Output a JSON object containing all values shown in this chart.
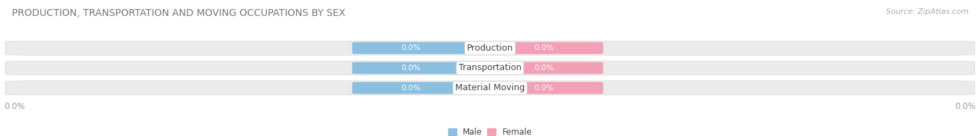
{
  "title": "PRODUCTION, TRANSPORTATION AND MOVING OCCUPATIONS BY SEX",
  "source_text": "Source: ZipAtlas.com",
  "categories": [
    "Production",
    "Transportation",
    "Material Moving"
  ],
  "male_values": [
    0.0,
    0.0,
    0.0
  ],
  "female_values": [
    0.0,
    0.0,
    0.0
  ],
  "male_color": "#8bbfe0",
  "female_color": "#f2a0b5",
  "bar_bg_color": "#ebebeb",
  "male_label": "Male",
  "female_label": "Female",
  "title_fontsize": 10,
  "source_fontsize": 8,
  "value_fontsize": 8,
  "category_fontsize": 9,
  "x_left_label": "0.0%",
  "x_right_label": "0.0%",
  "bar_height": 0.62,
  "background_color": "#ffffff",
  "text_color": "#777777",
  "category_text_color": "#444444",
  "axis_label_color": "#999999"
}
